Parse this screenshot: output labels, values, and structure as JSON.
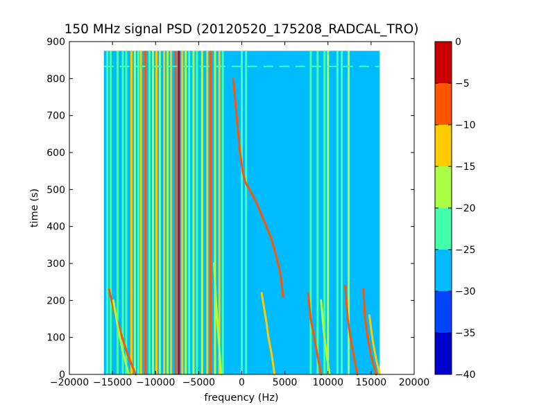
{
  "chart_data": {
    "type": "heatmap",
    "title": "150 MHz signal PSD (20120520_175208_RADCAL_TRO)",
    "xlabel": "frequency (Hz)",
    "ylabel": "time (s)",
    "xlim": [
      -20000,
      20000
    ],
    "ylim": [
      0,
      900
    ],
    "xticks": [
      -20000,
      -15000,
      -10000,
      -5000,
      0,
      5000,
      10000,
      15000,
      20000
    ],
    "yticks": [
      0,
      100,
      200,
      300,
      400,
      500,
      600,
      700,
      800,
      900
    ],
    "data_extent": {
      "freq_min": -16000,
      "freq_max": 16000,
      "time_min": 0,
      "time_max": 875
    },
    "background_level": -27.5,
    "colormap": {
      "name": "jet",
      "levels": [
        -40,
        -35,
        -30,
        -25,
        -20,
        -15,
        -10,
        -5,
        0
      ],
      "colors": [
        "#0000cc",
        "#0044ff",
        "#00bbff",
        "#44ffaa",
        "#aaff44",
        "#ffcc00",
        "#ff5500",
        "#cc0000"
      ]
    },
    "colorbar": {
      "ticks": [
        0,
        -5,
        -10,
        -15,
        -20,
        -25,
        -30,
        -35,
        -40
      ],
      "tick_labels": [
        "0",
        "−5",
        "−10",
        "−15",
        "−20",
        "−25",
        "−30",
        "−35",
        "−40"
      ]
    },
    "constant_lines": [
      {
        "freq": -15600,
        "level": -22.5
      },
      {
        "freq": -15200,
        "level": -22.5
      },
      {
        "freq": -14400,
        "level": -22.5
      },
      {
        "freq": -13800,
        "level": -22.5
      },
      {
        "freq": -13400,
        "level": -22.5
      },
      {
        "freq": -12800,
        "level": -12.5
      },
      {
        "freq": -12400,
        "level": -17.5
      },
      {
        "freq": -12000,
        "level": -22.5
      },
      {
        "freq": -11700,
        "level": -12.5
      },
      {
        "freq": -11200,
        "level": -7.5
      },
      {
        "freq": -10700,
        "level": -22.5
      },
      {
        "freq": -10300,
        "level": -17.5
      },
      {
        "freq": -9900,
        "level": -12.5
      },
      {
        "freq": -9500,
        "level": -17.5
      },
      {
        "freq": -9000,
        "level": -12.5
      },
      {
        "freq": -8600,
        "level": -17.5
      },
      {
        "freq": -8200,
        "level": -12.5
      },
      {
        "freq": -7700,
        "level": -7.5
      },
      {
        "freq": -7300,
        "level": -2.5
      },
      {
        "freq": -6900,
        "level": -12.5
      },
      {
        "freq": -6500,
        "level": -17.5
      },
      {
        "freq": -6100,
        "level": -22.5
      },
      {
        "freq": -5600,
        "level": -17.5
      },
      {
        "freq": -5200,
        "level": -22.5
      },
      {
        "freq": -4600,
        "level": -17.5
      },
      {
        "freq": -4000,
        "level": -12.5
      },
      {
        "freq": -3600,
        "level": -7.5
      },
      {
        "freq": -3100,
        "level": -17.5
      },
      {
        "freq": -2600,
        "level": -12.5
      },
      {
        "freq": -2200,
        "level": -22.5
      },
      {
        "freq": 0,
        "level": -22.5
      },
      {
        "freq": 500,
        "level": -22.5
      },
      {
        "freq": 8000,
        "level": -22.5
      },
      {
        "freq": 8800,
        "level": -22.5
      },
      {
        "freq": 9600,
        "level": -22.5
      },
      {
        "freq": 10000,
        "level": -17.5
      },
      {
        "freq": 11100,
        "level": -22.5
      },
      {
        "freq": 11600,
        "level": -22.5
      },
      {
        "freq": 12400,
        "level": -17.5
      }
    ],
    "drift_tracks": [
      {
        "points": [
          [
            -12300,
            0
          ],
          [
            -13200,
            50
          ],
          [
            -14000,
            110
          ],
          [
            -14800,
            170
          ],
          [
            -15400,
            230
          ]
        ],
        "level": -7.5
      },
      {
        "points": [
          [
            -13100,
            0
          ],
          [
            -13800,
            60
          ],
          [
            -14400,
            130
          ],
          [
            -14900,
            200
          ]
        ],
        "level": -17.5
      },
      {
        "points": [
          [
            -2400,
            0
          ],
          [
            -2700,
            100
          ],
          [
            -3000,
            200
          ],
          [
            -3200,
            300
          ]
        ],
        "level": -17.5
      },
      {
        "points": [
          [
            -1000,
            800
          ],
          [
            -800,
            750
          ],
          [
            -600,
            700
          ],
          [
            -200,
            600
          ],
          [
            100,
            550
          ],
          [
            400,
            520
          ],
          [
            900,
            500
          ],
          [
            1600,
            470
          ],
          [
            2500,
            420
          ],
          [
            3400,
            370
          ],
          [
            4000,
            320
          ],
          [
            4500,
            270
          ],
          [
            4800,
            210
          ]
        ],
        "level": -7.5
      },
      {
        "points": [
          [
            3800,
            0
          ],
          [
            3500,
            50
          ],
          [
            3100,
            100
          ],
          [
            2800,
            150
          ],
          [
            2300,
            220
          ]
        ],
        "level": -12.5
      },
      {
        "points": [
          [
            9200,
            0
          ],
          [
            8800,
            50
          ],
          [
            8400,
            100
          ],
          [
            8000,
            150
          ],
          [
            7700,
            220
          ]
        ],
        "level": -7.5
      },
      {
        "points": [
          [
            10200,
            0
          ],
          [
            9800,
            60
          ],
          [
            9500,
            120
          ],
          [
            9200,
            200
          ]
        ],
        "level": -17.5
      },
      {
        "points": [
          [
            13400,
            0
          ],
          [
            13000,
            50
          ],
          [
            12600,
            100
          ],
          [
            12300,
            150
          ],
          [
            12000,
            240
          ]
        ],
        "level": -7.5
      },
      {
        "points": [
          [
            15600,
            0
          ],
          [
            15000,
            50
          ],
          [
            14600,
            100
          ],
          [
            14300,
            150
          ],
          [
            14100,
            230
          ]
        ],
        "level": -7.5
      },
      {
        "points": [
          [
            16000,
            0
          ],
          [
            15600,
            40
          ],
          [
            15200,
            90
          ],
          [
            14800,
            160
          ]
        ],
        "level": -12.5
      }
    ],
    "dashed_band": {
      "time": 833,
      "level": -22.5
    }
  }
}
